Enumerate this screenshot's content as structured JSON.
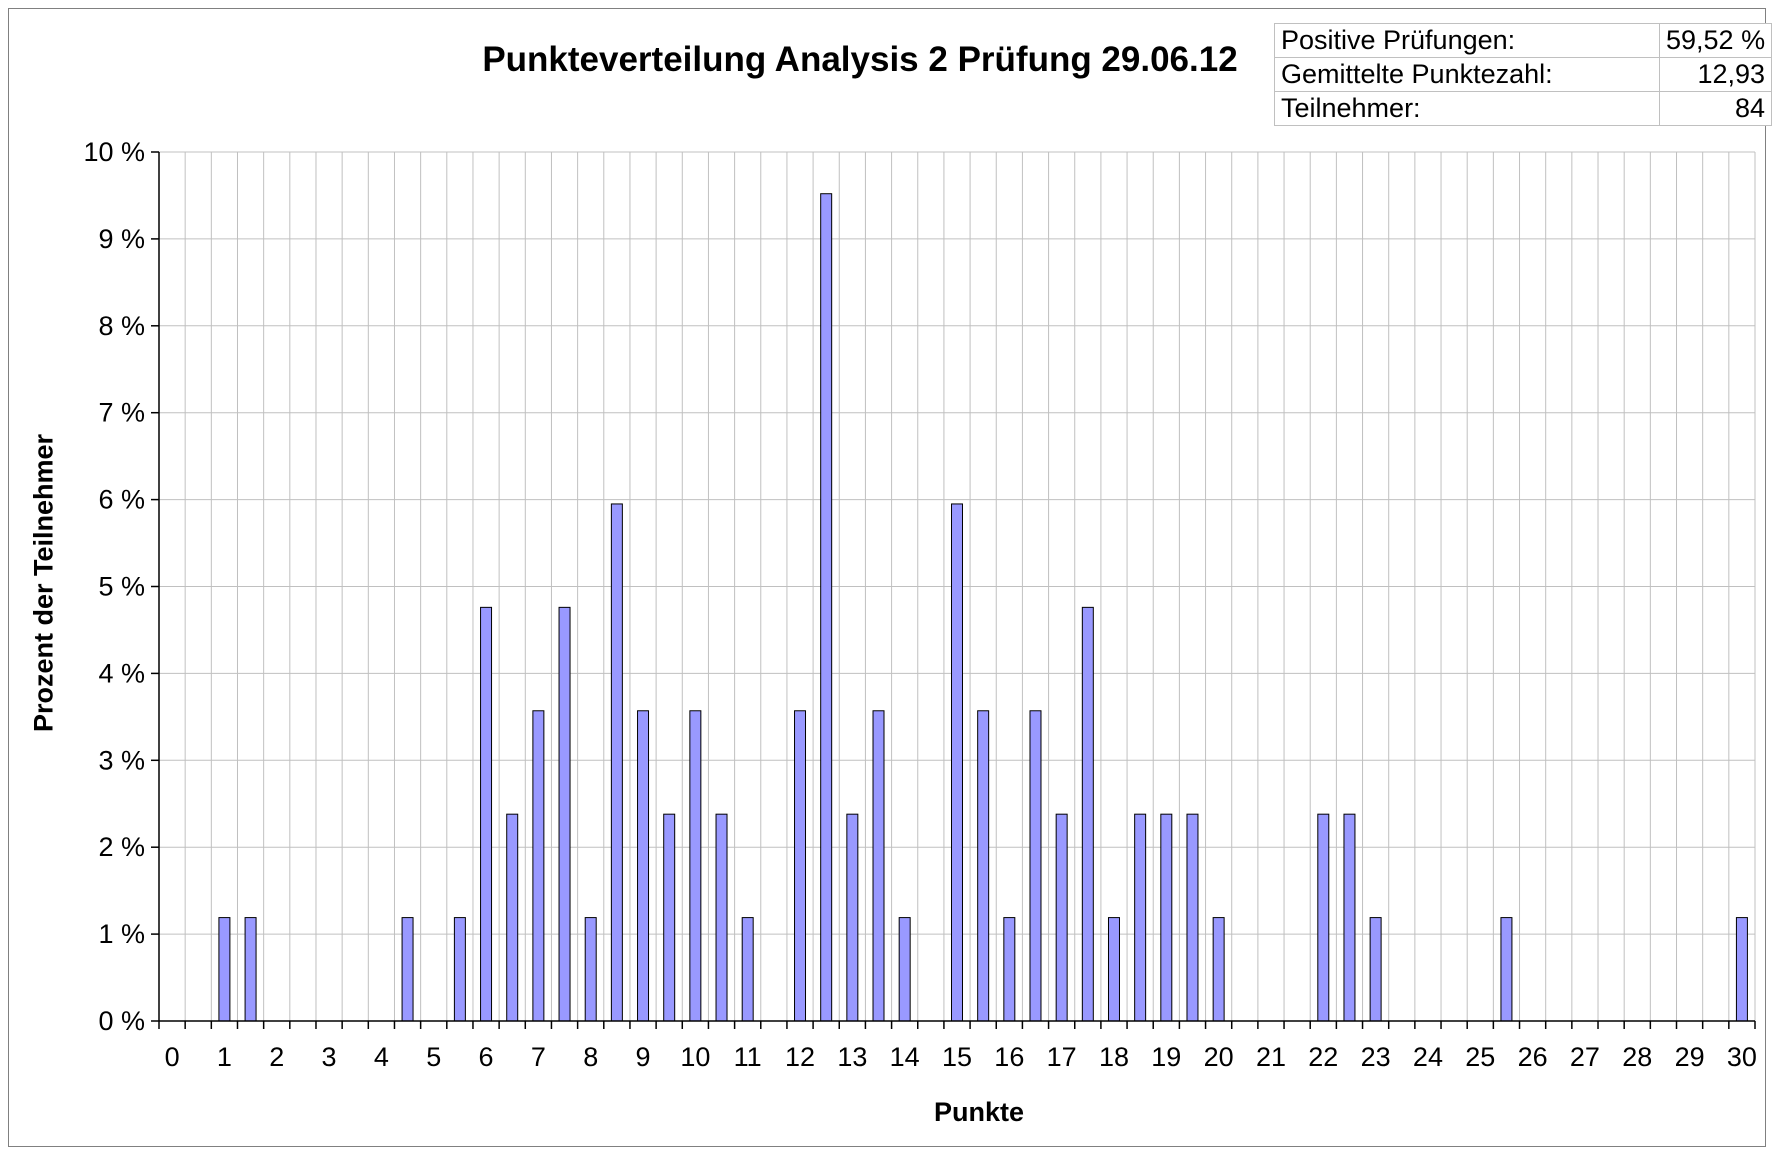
{
  "chart_data": {
    "type": "bar",
    "title": "Punkteverteilung Analysis 2 Prüfung 29.06.12",
    "xlabel": "Punkte",
    "ylabel": "Prozent der Teilnehmer",
    "x_ticks": [
      "0",
      "1",
      "2",
      "3",
      "4",
      "5",
      "6",
      "7",
      "8",
      "9",
      "10",
      "11",
      "12",
      "13",
      "14",
      "15",
      "16",
      "17",
      "18",
      "19",
      "20",
      "21",
      "22",
      "23",
      "24",
      "25",
      "26",
      "27",
      "28",
      "29",
      "30"
    ],
    "y_ticks": [
      "0 %",
      "1 %",
      "2 %",
      "3 %",
      "4 %",
      "5 %",
      "6 %",
      "7 %",
      "8 %",
      "9 %",
      "10 %"
    ],
    "xlim": [
      0,
      30
    ],
    "ylim": [
      0,
      10
    ],
    "x_step": 0.5,
    "bar_color": "#9999ff",
    "bar_border_color": "#000000",
    "grid": true,
    "grid_color": "#c0c0c0",
    "legend": false,
    "points": [
      {
        "x": 1,
        "y": 1.19
      },
      {
        "x": 1.5,
        "y": 1.19
      },
      {
        "x": 4.5,
        "y": 1.19
      },
      {
        "x": 5.5,
        "y": 1.19
      },
      {
        "x": 6,
        "y": 4.76
      },
      {
        "x": 6.5,
        "y": 2.38
      },
      {
        "x": 7,
        "y": 3.57
      },
      {
        "x": 7.5,
        "y": 4.76
      },
      {
        "x": 8,
        "y": 1.19
      },
      {
        "x": 8.5,
        "y": 5.95
      },
      {
        "x": 9,
        "y": 3.57
      },
      {
        "x": 9.5,
        "y": 2.38
      },
      {
        "x": 10,
        "y": 3.57
      },
      {
        "x": 10.5,
        "y": 2.38
      },
      {
        "x": 11,
        "y": 1.19
      },
      {
        "x": 12,
        "y": 3.57
      },
      {
        "x": 12.5,
        "y": 9.52
      },
      {
        "x": 13,
        "y": 2.38
      },
      {
        "x": 13.5,
        "y": 3.57
      },
      {
        "x": 14,
        "y": 1.19
      },
      {
        "x": 15,
        "y": 5.95
      },
      {
        "x": 15.5,
        "y": 3.57
      },
      {
        "x": 16,
        "y": 1.19
      },
      {
        "x": 16.5,
        "y": 3.57
      },
      {
        "x": 17,
        "y": 2.38
      },
      {
        "x": 17.5,
        "y": 4.76
      },
      {
        "x": 18,
        "y": 1.19
      },
      {
        "x": 18.5,
        "y": 2.38
      },
      {
        "x": 19,
        "y": 2.38
      },
      {
        "x": 19.5,
        "y": 2.38
      },
      {
        "x": 20,
        "y": 1.19
      },
      {
        "x": 22,
        "y": 2.38
      },
      {
        "x": 22.5,
        "y": 2.38
      },
      {
        "x": 23,
        "y": 1.19
      },
      {
        "x": 25.5,
        "y": 1.19
      },
      {
        "x": 30,
        "y": 1.19
      }
    ]
  },
  "stats": [
    {
      "label": "Positive Prüfungen:",
      "value": "59,52 %"
    },
    {
      "label": "Gemittelte Punktezahl:",
      "value": "12,93"
    },
    {
      "label": "Teilnehmer:",
      "value": "84"
    }
  ]
}
